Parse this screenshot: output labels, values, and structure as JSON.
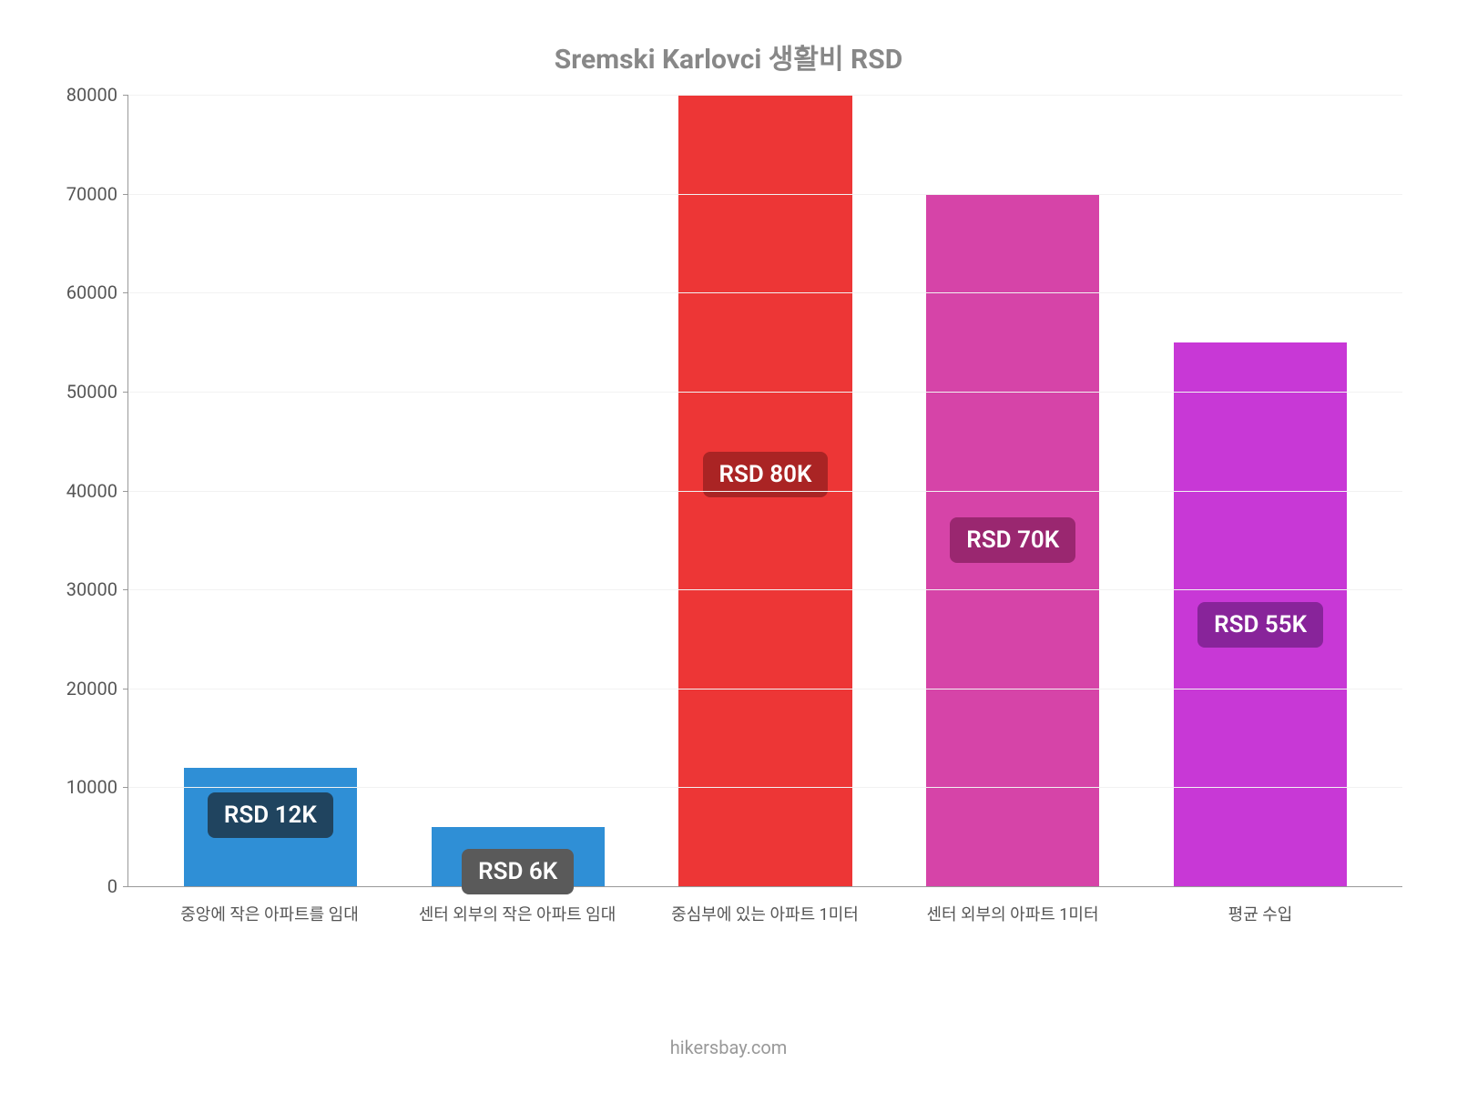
{
  "chart": {
    "title": "Sremski Karlovci 생활비 RSD",
    "title_fontsize": 30,
    "title_color": "#888888",
    "footer": "hikersbay.com",
    "footer_color": "#999999",
    "background_color": "#ffffff",
    "type": "bar",
    "ylim": [
      0,
      80000
    ],
    "ytick_step": 10000,
    "yticks": [
      0,
      10000,
      20000,
      30000,
      40000,
      50000,
      60000,
      70000,
      80000
    ],
    "grid_color": "#f2f2f2",
    "axis_color": "#999999",
    "tick_color": "#555555",
    "tick_fontsize": 20,
    "xlabel_fontsize": 18,
    "bar_width_pct": 70,
    "bar_label_fontsize": 26,
    "categories": [
      "중앙에 작은 아파트를 임대",
      "센터 외부의 작은 아파트 임대",
      "중심부에 있는 아파트 1미터",
      "센터 외부의 아파트 1미터",
      "평균 수입"
    ],
    "values": [
      12000,
      6000,
      80000,
      70000,
      55000
    ],
    "value_labels": [
      "RSD 12K",
      "RSD 6K",
      "RSD 80K",
      "RSD 70K",
      "RSD 55K"
    ],
    "bar_colors": [
      "#2f8fd6",
      "#2f8fd6",
      "#ed3636",
      "#d644a8",
      "#c838d6"
    ],
    "label_bg_colors": [
      "#20445f",
      "#5a5a5a",
      "#aa2424",
      "#9a2770",
      "#88249a"
    ],
    "label_offsets_pct": [
      40,
      75,
      48,
      50,
      52
    ]
  }
}
